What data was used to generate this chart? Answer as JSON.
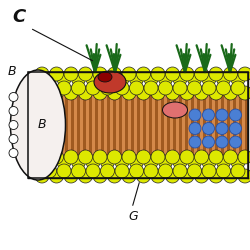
{
  "bg_color": "#ffffff",
  "yel": "#dde800",
  "yel_dark": "#b8c000",
  "yel_stroke": "#222222",
  "orange_bg": "#d4894a",
  "orange_stripe": "#a05a20",
  "red_protein": "#c0392b",
  "pink_protein": "#e07070",
  "blue_protein": "#4a7fd4",
  "blue_dark": "#2a4fa0",
  "green_glyco": "#1a6a1a",
  "white_protein": "#f5f0ee",
  "black": "#111111",
  "gray": "#555555",
  "label_C": "C",
  "label_B": "B",
  "label_G": "G"
}
